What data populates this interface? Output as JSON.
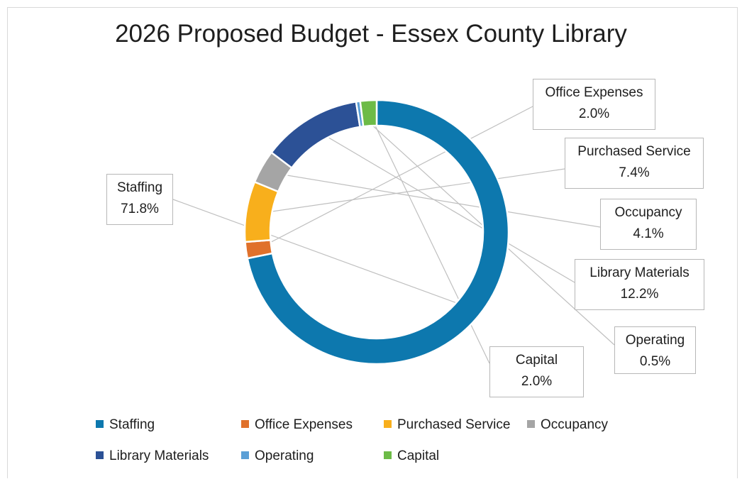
{
  "chart_data": {
    "type": "pie",
    "variant": "doughnut",
    "title": "2026 Proposed Budget - Essex County Library",
    "series": [
      {
        "name": "Staffing",
        "value": 71.8,
        "label": "71.8%",
        "color": "#0d78ae"
      },
      {
        "name": "Office Expenses",
        "value": 2.0,
        "label": "2.0%",
        "color": "#e0712b"
      },
      {
        "name": "Purchased Service",
        "value": 7.4,
        "label": "7.4%",
        "color": "#f8af1c"
      },
      {
        "name": "Occupancy",
        "value": 4.1,
        "label": "4.1%",
        "color": "#a5a5a5"
      },
      {
        "name": "Library Materials",
        "value": 12.2,
        "label": "12.2%",
        "color": "#2c5196"
      },
      {
        "name": "Operating",
        "value": 0.5,
        "label": "0.5%",
        "color": "#5a9fd6"
      },
      {
        "name": "Capital",
        "value": 2.0,
        "label": "2.0%",
        "color": "#6dbb47"
      }
    ],
    "legend_position": "bottom"
  }
}
